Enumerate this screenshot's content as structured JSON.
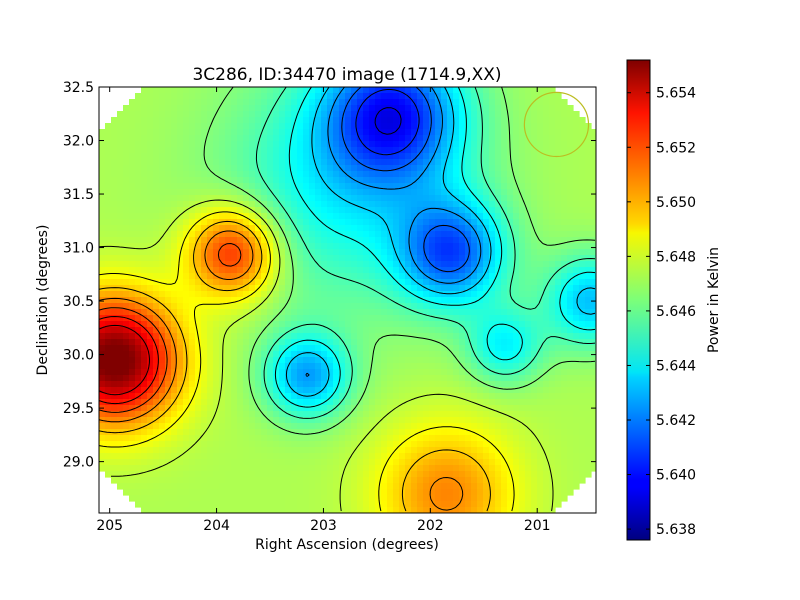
{
  "chart_data": {
    "type": "heatmap",
    "title": "3C286, ID:34470 image (1714.9,XX)",
    "xlabel": "Right Ascension (degrees)",
    "ylabel": "Declination (degrees)",
    "xlim": [
      205.1,
      200.45
    ],
    "ylim": [
      28.52,
      32.5
    ],
    "x_inverted": true,
    "xticks": [
      205,
      204,
      203,
      202,
      201
    ],
    "xtick_labels": [
      "205",
      "204",
      "203",
      "202",
      "201"
    ],
    "yticks": [
      29.0,
      29.5,
      30.0,
      30.5,
      31.0,
      31.5,
      32.0,
      32.5
    ],
    "ytick_labels": [
      "29.0",
      "29.5",
      "30.0",
      "30.5",
      "31.0",
      "31.5",
      "32.0",
      "32.5"
    ],
    "colorbar": {
      "label": "Power in Kelvin",
      "range": [
        5.6376,
        5.6552
      ],
      "colormap": "jet",
      "ticks": [
        5.638,
        5.64,
        5.642,
        5.644,
        5.646,
        5.648,
        5.65,
        5.652,
        5.654
      ],
      "tick_labels": [
        "5.638",
        "5.640",
        "5.642",
        "5.644",
        "5.646",
        "5.648",
        "5.650",
        "5.652",
        "5.654"
      ]
    },
    "field": {
      "baseline": 5.6472,
      "features": [
        {
          "ra": 204.95,
          "dec": 29.95,
          "amp": 0.0085,
          "sigma": 0.42,
          "kind": "max"
        },
        {
          "ra": 203.85,
          "dec": 30.95,
          "amp": 0.0055,
          "sigma": 0.3,
          "kind": "max"
        },
        {
          "ra": 201.85,
          "dec": 28.7,
          "amp": 0.0035,
          "sigma": 0.45,
          "kind": "max"
        },
        {
          "ra": 203.15,
          "dec": 29.8,
          "amp": -0.0045,
          "sigma": 0.28,
          "kind": "min"
        },
        {
          "ra": 202.35,
          "dec": 32.25,
          "amp": -0.006,
          "sigma": 0.45,
          "kind": "min"
        },
        {
          "ra": 201.8,
          "dec": 30.95,
          "amp": -0.0055,
          "sigma": 0.35,
          "kind": "min"
        },
        {
          "ra": 201.3,
          "dec": 30.08,
          "amp": -0.003,
          "sigma": 0.25,
          "kind": "min"
        },
        {
          "ra": 200.5,
          "dec": 30.5,
          "amp": -0.004,
          "sigma": 0.3,
          "kind": "min"
        },
        {
          "ra": 202.8,
          "dec": 31.6,
          "amp": -0.003,
          "sigma": 0.8,
          "kind": "min"
        }
      ]
    },
    "contour_levels": [
      5.6395,
      5.6405,
      5.6415,
      5.6425,
      5.6435,
      5.6445,
      5.6455,
      5.6465,
      5.6475,
      5.6485,
      5.6495,
      5.6505,
      5.6515,
      5.6525,
      5.6535
    ],
    "beam_circle": {
      "ra": 200.82,
      "dec": 32.15,
      "radius_deg": 0.3,
      "color": "#bcbd22"
    },
    "footprint": "octagon"
  }
}
